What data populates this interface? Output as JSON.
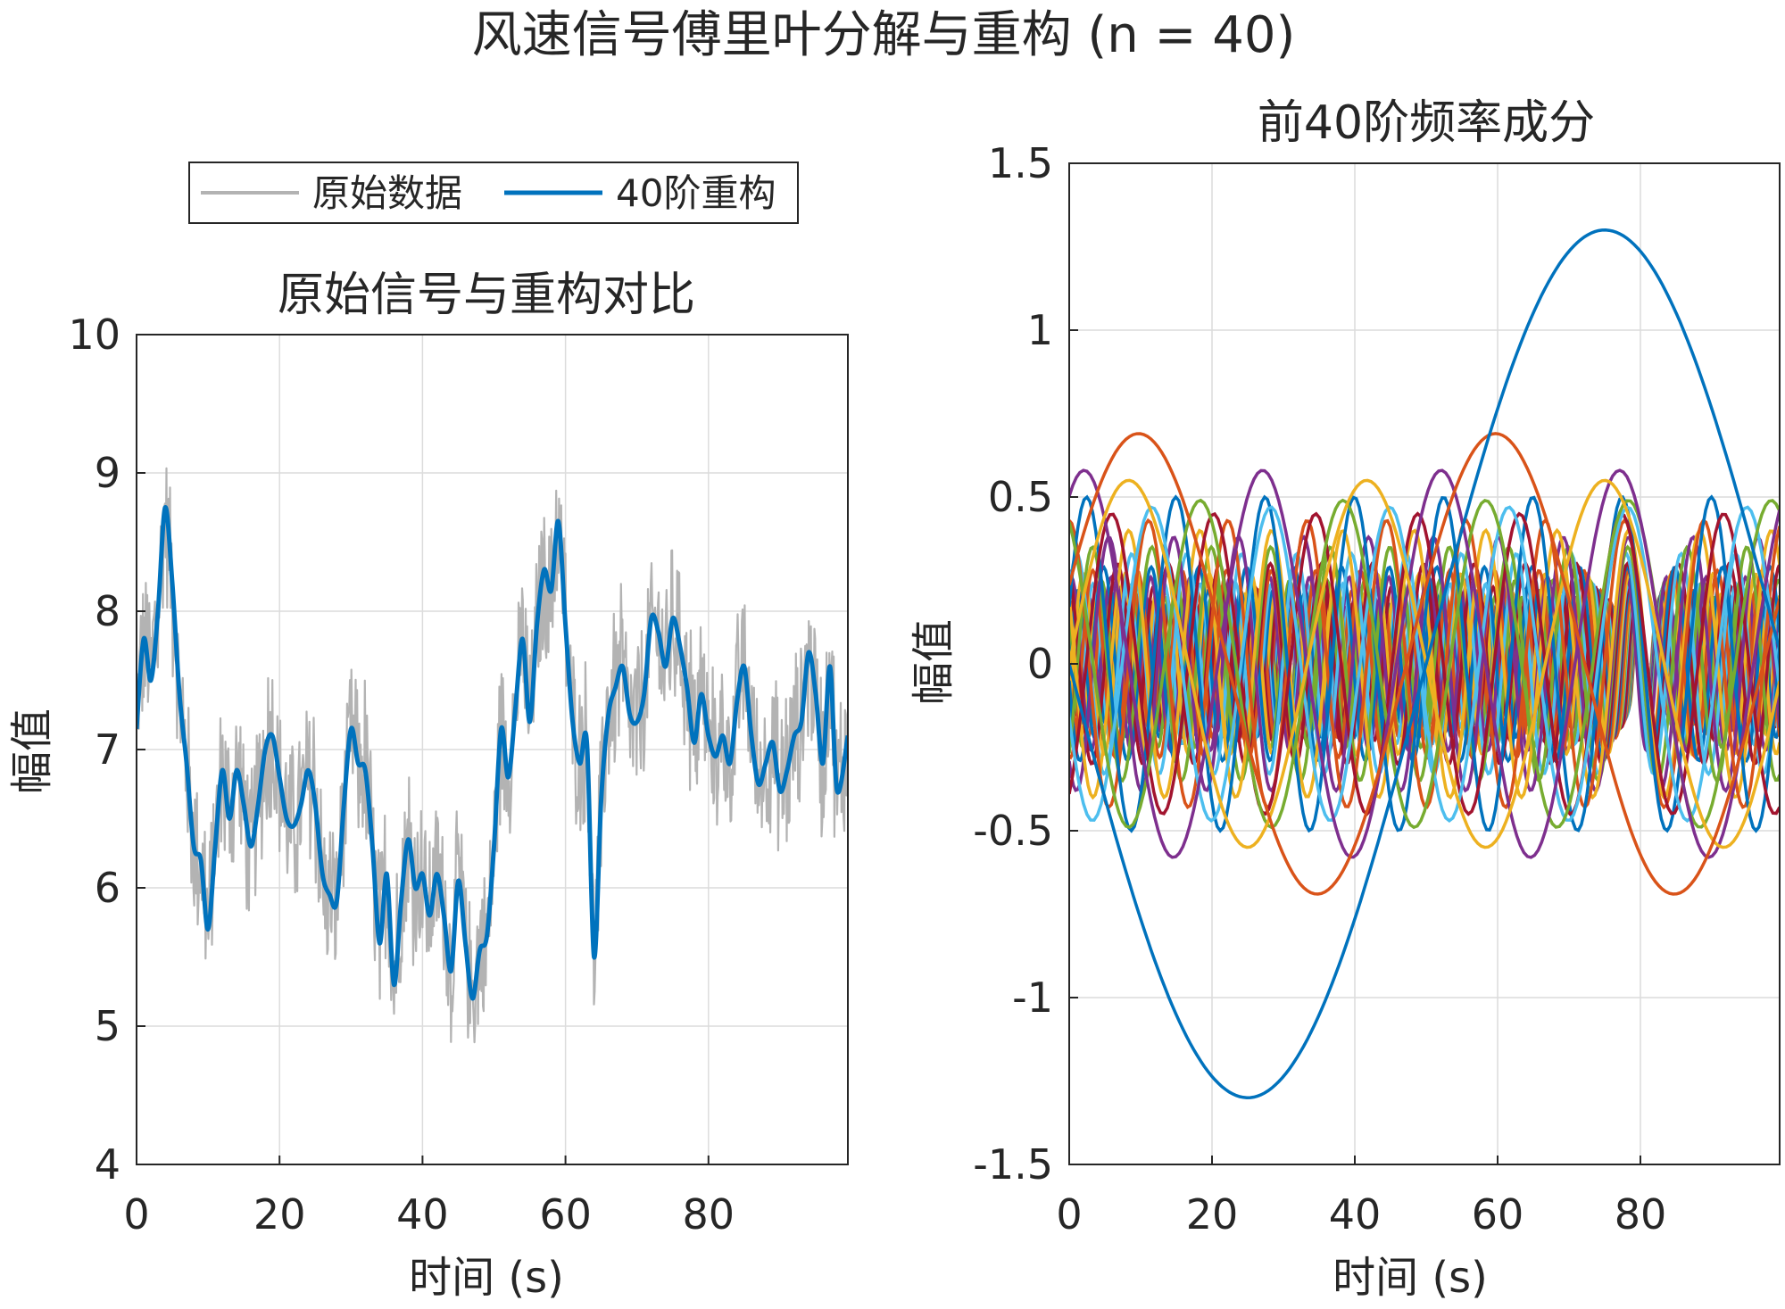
{
  "figure": {
    "suptitle": "风速信号傅里叶分解与重构 (n = 40)"
  },
  "chart_data": [
    {
      "type": "line",
      "title": "原始信号与重构对比",
      "xlabel": "时间 (s)",
      "ylabel": "幅值",
      "xlim": [
        0,
        99.5
      ],
      "ylim": [
        4,
        10
      ],
      "xticks": [
        0,
        20,
        40,
        60,
        80
      ],
      "yticks": [
        4,
        5,
        6,
        7,
        8,
        9,
        10
      ],
      "xtick_labels": [
        "0",
        "20",
        "40",
        "60",
        "80"
      ],
      "ytick_labels": [
        "4",
        "5",
        "6",
        "7",
        "8",
        "9",
        "10"
      ],
      "grid": true,
      "legend_location": "top",
      "legend": [
        "原始数据",
        "40阶重构"
      ],
      "series": [
        {
          "name": "原始数据",
          "color": "#b3b3b3",
          "description_values": "noisy raw wind speed",
          "x": [
            0,
            2,
            4,
            6,
            8,
            10,
            12,
            14,
            16,
            18,
            20,
            22,
            24,
            26,
            28,
            30,
            32,
            34,
            36,
            38,
            40,
            42,
            44,
            46,
            48,
            50,
            52,
            54,
            56,
            58,
            60,
            62,
            64,
            66,
            68,
            70,
            72,
            74,
            76,
            78,
            80,
            82,
            84,
            86,
            88,
            90,
            92,
            94,
            96,
            98,
            99.5
          ],
          "y": [
            7.2,
            7.8,
            8.7,
            7.5,
            6.3,
            5.8,
            6.6,
            6.7,
            6.4,
            6.9,
            7.1,
            6.6,
            6.5,
            6.8,
            5.9,
            7.1,
            6.8,
            5.7,
            5.3,
            6.3,
            6.0,
            6.2,
            5.5,
            6.1,
            5.3,
            6.0,
            7.4,
            7.8,
            6.8,
            8.3,
            8.6,
            6.7,
            6.0,
            7.3,
            7.5,
            6.9,
            7.6,
            7.9,
            7.3,
            6.8,
            6.9,
            7.3,
            6.6,
            6.9,
            6.5,
            7.2,
            7.6,
            6.6,
            7.5,
            6.8,
            7.1
          ]
        },
        {
          "name": "40阶重构",
          "color": "#0072bd",
          "x": [
            0,
            1,
            2,
            3,
            4,
            5,
            6,
            7,
            8,
            9,
            10,
            11,
            12,
            13,
            14,
            15,
            16,
            17,
            18,
            19,
            20,
            21,
            22,
            23,
            24,
            25,
            26,
            27,
            28,
            29,
            30,
            31,
            32,
            33,
            34,
            35,
            36,
            37,
            38,
            39,
            40,
            41,
            42,
            43,
            44,
            45,
            46,
            47,
            48,
            49,
            50,
            51,
            52,
            53,
            54,
            55,
            56,
            57,
            58,
            59,
            60,
            61,
            62,
            63,
            64,
            65,
            66,
            67,
            68,
            69,
            70,
            71,
            72,
            73,
            74,
            75,
            76,
            77,
            78,
            79,
            80,
            81,
            82,
            83,
            84,
            85,
            86,
            87,
            88,
            89,
            90,
            91,
            92,
            93,
            94,
            95,
            96,
            97,
            98,
            99.5
          ],
          "y": [
            7.15,
            7.8,
            7.5,
            8.0,
            8.75,
            8.2,
            7.4,
            6.9,
            6.3,
            6.2,
            5.7,
            6.3,
            6.85,
            6.5,
            6.85,
            6.6,
            6.3,
            6.6,
            7.0,
            7.1,
            6.8,
            6.5,
            6.45,
            6.6,
            6.85,
            6.6,
            6.1,
            5.95,
            5.9,
            6.6,
            7.15,
            6.9,
            6.85,
            6.3,
            5.6,
            6.1,
            5.3,
            5.9,
            6.35,
            6.0,
            6.1,
            5.8,
            6.1,
            5.8,
            5.4,
            6.05,
            5.6,
            5.2,
            5.55,
            5.65,
            6.3,
            7.15,
            6.8,
            7.3,
            7.8,
            7.2,
            7.9,
            8.3,
            8.15,
            8.65,
            7.9,
            7.2,
            6.9,
            7.05,
            5.5,
            6.65,
            7.25,
            7.45,
            7.6,
            7.25,
            7.2,
            7.4,
            7.95,
            7.85,
            7.6,
            7.95,
            7.75,
            7.45,
            7.05,
            7.4,
            7.1,
            6.95,
            7.1,
            6.9,
            7.35,
            7.6,
            7.1,
            6.75,
            6.9,
            7.05,
            6.7,
            6.85,
            7.1,
            7.2,
            7.7,
            7.4,
            6.9,
            7.6,
            6.7,
            7.1
          ]
        }
      ]
    },
    {
      "type": "line",
      "title": "前40阶频率成分",
      "xlabel": "时间 (s)",
      "ylabel": "幅值",
      "xlim": [
        0,
        99.5
      ],
      "ylim": [
        -1.5,
        1.5
      ],
      "xticks": [
        0,
        20,
        40,
        60,
        80
      ],
      "yticks": [
        -1.5,
        -1,
        -0.5,
        0,
        0.5,
        1,
        1.5
      ],
      "xtick_labels": [
        "0",
        "20",
        "40",
        "60",
        "80"
      ],
      "ytick_labels": [
        "-1.5",
        "-1",
        "-0.5",
        "0",
        "0.5",
        "1",
        "1.5"
      ],
      "grid": true,
      "n_components": 40,
      "palette": [
        "#0072bd",
        "#d95319",
        "#edb120",
        "#7e2f8e",
        "#77ac30",
        "#4dbeee",
        "#a2142f"
      ],
      "components": [
        {
          "order": 1,
          "amplitude": 1.3,
          "phase_deg": 180
        },
        {
          "order": 2,
          "amplitude": 0.69,
          "phase_deg": 20
        },
        {
          "order": 3,
          "amplitude": 0.55,
          "phase_deg": 0
        },
        {
          "order": 4,
          "amplitude": 0.58,
          "phase_deg": 60
        },
        {
          "order": 5,
          "amplitude": 0.49,
          "phase_deg": 120
        },
        {
          "order": 6,
          "amplitude": 0.47,
          "phase_deg": 200
        },
        {
          "order": 7,
          "amplitude": 0.45,
          "phase_deg": 300
        },
        {
          "order": 8,
          "amplitude": 0.5,
          "phase_deg": 20
        },
        {
          "order": 9,
          "amplitude": 0.43,
          "phase_deg": 90
        },
        {
          "order": 10,
          "amplitude": 0.4,
          "phase_deg": 150
        },
        {
          "order": 11,
          "amplitude": 0.38,
          "phase_deg": 230
        },
        {
          "order": 12,
          "amplitude": 0.35,
          "phase_deg": 310
        },
        {
          "order": 13,
          "amplitude": 0.33,
          "phase_deg": 40
        },
        {
          "order": 14,
          "amplitude": 0.3,
          "phase_deg": 110
        },
        {
          "order": 15,
          "amplitude": 0.29,
          "phase_deg": 190
        },
        {
          "order": 16,
          "amplitude": 0.28,
          "phase_deg": 260
        },
        {
          "order": 17,
          "amplitude": 0.27,
          "phase_deg": 330
        },
        {
          "order": 18,
          "amplitude": 0.26,
          "phase_deg": 70
        },
        {
          "order": 19,
          "amplitude": 0.25,
          "phase_deg": 140
        },
        {
          "order": 20,
          "amplitude": 0.24,
          "phase_deg": 210
        },
        {
          "order": 21,
          "amplitude": 0.23,
          "phase_deg": 280
        },
        {
          "order": 22,
          "amplitude": 0.22,
          "phase_deg": 350
        },
        {
          "order": 23,
          "amplitude": 0.22,
          "phase_deg": 50
        },
        {
          "order": 24,
          "amplitude": 0.21,
          "phase_deg": 120
        },
        {
          "order": 25,
          "amplitude": 0.2,
          "phase_deg": 200
        },
        {
          "order": 26,
          "amplitude": 0.2,
          "phase_deg": 270
        },
        {
          "order": 27,
          "amplitude": 0.19,
          "phase_deg": 340
        },
        {
          "order": 28,
          "amplitude": 0.19,
          "phase_deg": 30
        },
        {
          "order": 29,
          "amplitude": 0.18,
          "phase_deg": 100
        },
        {
          "order": 30,
          "amplitude": 0.18,
          "phase_deg": 170
        },
        {
          "order": 31,
          "amplitude": 0.17,
          "phase_deg": 240
        },
        {
          "order": 32,
          "amplitude": 0.17,
          "phase_deg": 310
        },
        {
          "order": 33,
          "amplitude": 0.16,
          "phase_deg": 10
        },
        {
          "order": 34,
          "amplitude": 0.16,
          "phase_deg": 80
        },
        {
          "order": 35,
          "amplitude": 0.15,
          "phase_deg": 150
        },
        {
          "order": 36,
          "amplitude": 0.15,
          "phase_deg": 220
        },
        {
          "order": 37,
          "amplitude": 0.14,
          "phase_deg": 290
        },
        {
          "order": 38,
          "amplitude": 0.14,
          "phase_deg": 0
        },
        {
          "order": 39,
          "amplitude": 0.13,
          "phase_deg": 70
        },
        {
          "order": 40,
          "amplitude": 0.13,
          "phase_deg": 140
        }
      ]
    }
  ]
}
